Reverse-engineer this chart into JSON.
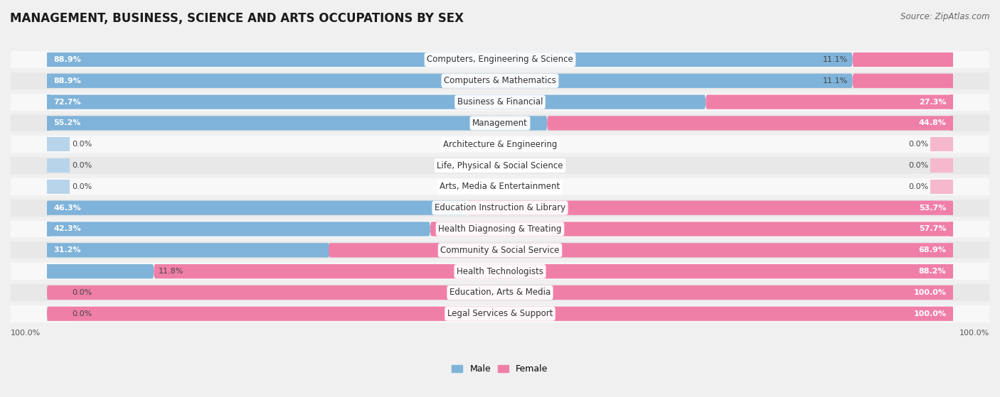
{
  "title": "MANAGEMENT, BUSINESS, SCIENCE AND ARTS OCCUPATIONS BY SEX",
  "source": "Source: ZipAtlas.com",
  "categories": [
    "Computers, Engineering & Science",
    "Computers & Mathematics",
    "Business & Financial",
    "Management",
    "Architecture & Engineering",
    "Life, Physical & Social Science",
    "Arts, Media & Entertainment",
    "Education Instruction & Library",
    "Health Diagnosing & Treating",
    "Community & Social Service",
    "Health Technologists",
    "Education, Arts & Media",
    "Legal Services & Support"
  ],
  "male_pct": [
    88.9,
    88.9,
    72.7,
    55.2,
    0.0,
    0.0,
    0.0,
    46.3,
    42.3,
    31.2,
    11.8,
    0.0,
    0.0
  ],
  "female_pct": [
    11.1,
    11.1,
    27.3,
    44.8,
    0.0,
    0.0,
    0.0,
    53.7,
    57.7,
    68.9,
    88.2,
    100.0,
    100.0
  ],
  "male_color": "#7fb3d9",
  "female_color": "#f07fa8",
  "male_stub_color": "#b8d4ea",
  "female_stub_color": "#f5b8cc",
  "bg_color": "#f0f0f0",
  "row_bg_even": "#f8f8f8",
  "row_bg_odd": "#e8e8e8",
  "title_fontsize": 12,
  "label_fontsize": 8.5,
  "pct_fontsize": 8,
  "legend_fontsize": 9,
  "source_fontsize": 8.5
}
